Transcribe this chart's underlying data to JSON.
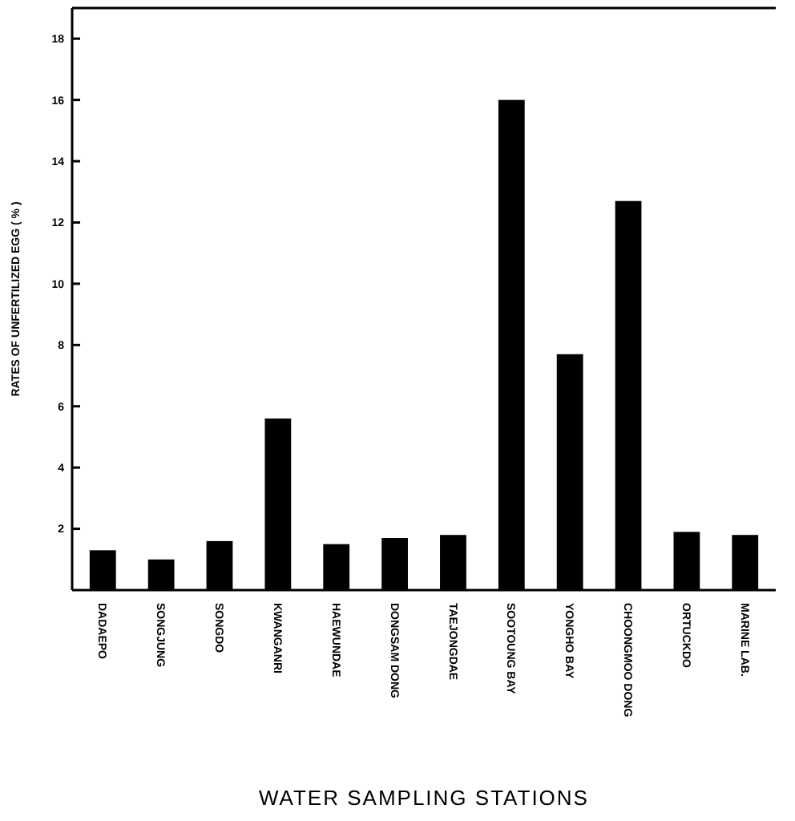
{
  "chart_data": {
    "type": "bar",
    "xlabel": "WATER SAMPLING STATIONS",
    "ylabel": "RATES OF UNFERTILIZED EGG ( % )",
    "categories": [
      "DADAEPO",
      "SONGJUNG",
      "SONGDO",
      "KWANGANRI",
      "HAEWUNDAE",
      "DONGSAM DONG",
      "TAEJONGDAE",
      "SOOTOUNG BAY",
      "YONGHO BAY",
      "CHOONGMOO DONG",
      "ORTUCKDO",
      "MARINE LAB."
    ],
    "values": [
      1.3,
      1.0,
      1.6,
      5.6,
      1.5,
      1.7,
      1.8,
      16.0,
      7.7,
      12.7,
      1.9,
      1.8
    ],
    "color": "#000000",
    "ylim": [
      0,
      19
    ],
    "yticks": [
      2,
      4,
      6,
      8,
      10,
      12,
      14,
      16,
      18
    ],
    "grid": false
  }
}
